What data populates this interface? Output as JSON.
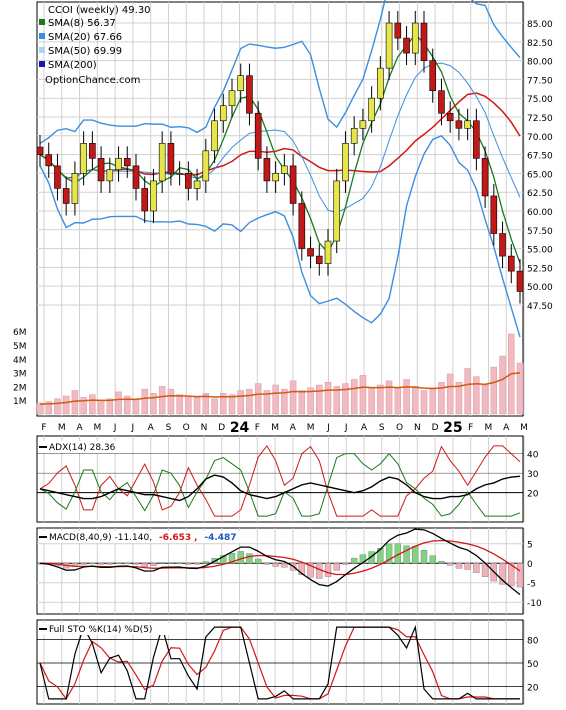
{
  "colors": {
    "sma8": "#1a7a1a",
    "sma20": "#3b8fe0",
    "sma50": "#a9d4f5",
    "sma200": "#1a1aa8",
    "up": "#e6e64a",
    "down": "#c21818",
    "ema": "#d05a10",
    "vol": "#f2b9c0",
    "adx": "#000000",
    "diplus": "#1a7a1a",
    "diminus": "#d01818",
    "macd": "#000000",
    "signal": "#d01818",
    "histUp": "#7fd47f",
    "histDn": "#f2b0b8"
  },
  "chart_data": [
    {
      "type": "line",
      "title": "CCOI (weekly) 49.30",
      "legend": [
        {
          "label": "SMA(8) 56.37",
          "color": "#1a7a1a"
        },
        {
          "label": "SMA(20) 67.66",
          "color": "#3b8fe0"
        },
        {
          "label": "SMA(50) 69.99",
          "color": "#a9d4f5"
        },
        {
          "label": "SMA(200)",
          "color": "#1a1aa8"
        }
      ],
      "watermark": "OptionChance.com",
      "price_ticks": [
        "85.00",
        "82.50",
        "80.00",
        "77.50",
        "75.00",
        "72.50",
        "70.00",
        "67.50",
        "65.00",
        "62.50",
        "60.00",
        "57.50",
        "55.00",
        "52.50",
        "50.00",
        "47.50"
      ],
      "volume_ticks": [
        "6M",
        "5M",
        "4M",
        "3M",
        "2M",
        "1M"
      ],
      "x_labels": [
        "F",
        "M",
        "A",
        "M",
        "J",
        "J",
        "A",
        "S",
        "O",
        "N",
        "D",
        "24",
        "F",
        "M",
        "A",
        "M",
        "J",
        "J",
        "A",
        "S",
        "O",
        "N",
        "D",
        "25",
        "F",
        "M",
        "A",
        "M"
      ],
      "ylim": [
        45.5,
        87.0
      ],
      "close": [
        67.5,
        66,
        63,
        61,
        65,
        69,
        67,
        64,
        65.5,
        67,
        66,
        63,
        60,
        64,
        69,
        65,
        65,
        63,
        64,
        68,
        72,
        74,
        76,
        78,
        73,
        67,
        64,
        65,
        66,
        61,
        55,
        54,
        53,
        56,
        64,
        69,
        71,
        72,
        75,
        79,
        85,
        83,
        81,
        85,
        80,
        76,
        73,
        72,
        71,
        72,
        67,
        62,
        57,
        54,
        52,
        49.3
      ],
      "volume": [
        0.8,
        0.9,
        1.1,
        1.3,
        1.7,
        1.2,
        1.4,
        1.0,
        1.1,
        1.6,
        1.3,
        1.1,
        1.8,
        1.5,
        2.0,
        1.8,
        1.4,
        1.3,
        1.2,
        1.5,
        1.1,
        1.5,
        1.4,
        1.7,
        1.8,
        2.2,
        1.7,
        2.1,
        1.8,
        2.4,
        1.7,
        1.9,
        2.1,
        2.3,
        2.0,
        2.2,
        2.5,
        2.8,
        1.9,
        2.1,
        2.4,
        1.9,
        2.5,
        2.0,
        1.7,
        1.9,
        2.3,
        2.9,
        2.3,
        3.3,
        2.7,
        2.1,
        3.4,
        4.2,
        5.8,
        3.7
      ]
    },
    {
      "type": "line",
      "title": "ADX(14) 28.36",
      "y_ticks": [
        "40",
        "30",
        "20"
      ],
      "ylim": [
        6,
        47
      ],
      "series": [
        {
          "name": "ADX(14) 28.36",
          "values": [
            22,
            21,
            20,
            19,
            18,
            17,
            17,
            18,
            20,
            22,
            21,
            20,
            19,
            19,
            18,
            17,
            16,
            18,
            22,
            27,
            29,
            28,
            25,
            21,
            19,
            18,
            17,
            18,
            20,
            22,
            24,
            25,
            24,
            23,
            22,
            21,
            20,
            21,
            23,
            26,
            28,
            27,
            24,
            20,
            18,
            17,
            17,
            18,
            18,
            19,
            22,
            24,
            25,
            27,
            28,
            28.4
          ]
        }
      ]
    },
    {
      "type": "line",
      "title": "MACD(8,40,9) -11.140, -6.653, -4.487",
      "values_shown": [
        "-11.140",
        "-6.653",
        "-4.487"
      ],
      "y_ticks": [
        "5",
        "0",
        "-5",
        "-10"
      ],
      "ylim": [
        -12.5,
        8
      ]
    },
    {
      "type": "line",
      "title": "Full STO %K(14) %D(5)",
      "y_ticks": [
        "80",
        "50",
        "20"
      ],
      "ylim": [
        0,
        100
      ]
    }
  ]
}
